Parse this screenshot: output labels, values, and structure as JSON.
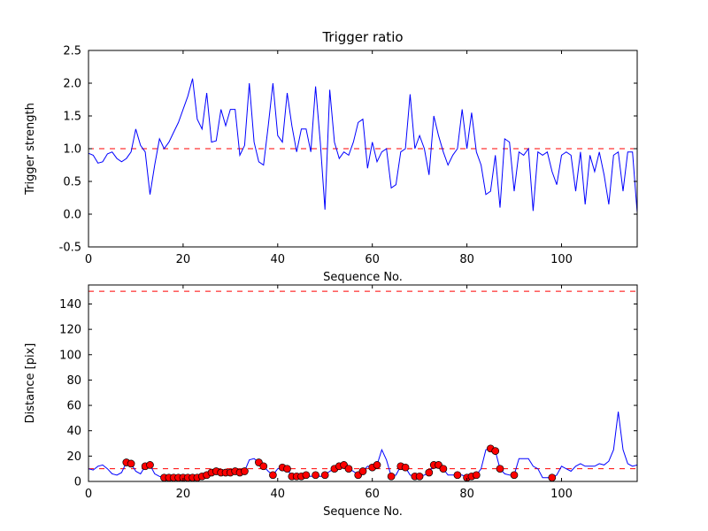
{
  "figure": {
    "background": "#ffffff",
    "line_color": "#0000ff",
    "threshold_color": "#ff0000",
    "marker_face_color": "#ff0000",
    "marker_edge_color": "#000000"
  },
  "chart_data": [
    {
      "type": "line",
      "title": "Trigger ratio",
      "xlabel": "Sequence No.",
      "ylabel": "Trigger strength",
      "xlim": [
        0,
        116
      ],
      "ylim": [
        -0.5,
        2.5
      ],
      "xticks": [
        0,
        20,
        40,
        60,
        80,
        100
      ],
      "yticks": [
        -0.5,
        0.0,
        0.5,
        1.0,
        1.5,
        2.0,
        2.5
      ],
      "grid": false,
      "legend": "none",
      "reference_lines": [
        {
          "y": 1.0,
          "color": "#ff0000",
          "style": "dashed"
        }
      ],
      "series": [
        {
          "name": "trigger-strength",
          "color": "#0000ff",
          "x": [
            0,
            1,
            2,
            3,
            4,
            5,
            6,
            7,
            8,
            9,
            10,
            11,
            12,
            13,
            14,
            15,
            16,
            17,
            18,
            19,
            20,
            21,
            22,
            23,
            24,
            25,
            26,
            27,
            28,
            29,
            30,
            31,
            32,
            33,
            34,
            35,
            36,
            37,
            38,
            39,
            40,
            41,
            42,
            43,
            44,
            45,
            46,
            47,
            48,
            49,
            50,
            51,
            52,
            53,
            54,
            55,
            56,
            57,
            58,
            59,
            60,
            61,
            62,
            63,
            64,
            65,
            66,
            67,
            68,
            69,
            70,
            71,
            72,
            73,
            74,
            75,
            76,
            77,
            78,
            79,
            80,
            81,
            82,
            83,
            84,
            85,
            86,
            87,
            88,
            89,
            90,
            91,
            92,
            93,
            94,
            95,
            96,
            97,
            98,
            99,
            100,
            101,
            102,
            103,
            104,
            105,
            106,
            107,
            108,
            109,
            110,
            111,
            112,
            113,
            114,
            115,
            116
          ],
          "y": [
            0.93,
            0.9,
            0.78,
            0.8,
            0.92,
            0.95,
            0.85,
            0.8,
            0.85,
            0.95,
            1.3,
            1.05,
            0.95,
            0.3,
            0.75,
            1.15,
            1.0,
            1.1,
            1.25,
            1.4,
            1.6,
            1.8,
            2.07,
            1.45,
            1.3,
            1.85,
            1.1,
            1.12,
            1.6,
            1.35,
            1.6,
            1.6,
            0.9,
            1.05,
            2.0,
            1.1,
            0.8,
            0.75,
            1.35,
            2.0,
            1.2,
            1.1,
            1.85,
            1.35,
            0.95,
            1.3,
            1.3,
            0.95,
            1.95,
            1.1,
            0.07,
            1.9,
            1.1,
            0.85,
            0.95,
            0.9,
            1.1,
            1.4,
            1.45,
            0.7,
            1.1,
            0.8,
            0.95,
            1.0,
            0.4,
            0.45,
            0.95,
            1.0,
            1.83,
            1.0,
            1.2,
            1.0,
            0.6,
            1.5,
            1.2,
            0.95,
            0.75,
            0.9,
            1.0,
            1.6,
            1.0,
            1.55,
            0.95,
            0.75,
            0.3,
            0.35,
            0.9,
            0.1,
            1.15,
            1.1,
            0.35,
            0.95,
            0.9,
            1.0,
            0.05,
            0.95,
            0.9,
            0.95,
            0.65,
            0.45,
            0.9,
            0.95,
            0.9,
            0.35,
            0.95,
            0.15,
            0.9,
            0.65,
            0.95,
            0.6,
            0.15,
            0.9,
            0.95,
            0.35,
            0.95,
            0.95,
            0.02
          ]
        }
      ]
    },
    {
      "type": "line",
      "title": "",
      "xlabel": "Sequence No.",
      "ylabel": "Distance [pix]",
      "xlim": [
        0,
        116
      ],
      "ylim": [
        0,
        155
      ],
      "xticks": [
        0,
        20,
        40,
        60,
        80,
        100
      ],
      "yticks": [
        0,
        20,
        40,
        60,
        80,
        100,
        120,
        140
      ],
      "grid": false,
      "legend": "none",
      "reference_lines": [
        {
          "y": 150,
          "color": "#ff0000",
          "style": "dashed"
        },
        {
          "y": 10,
          "color": "#ff0000",
          "style": "dashed"
        }
      ],
      "series": [
        {
          "name": "distance",
          "color": "#0000ff",
          "x": [
            0,
            1,
            2,
            3,
            4,
            5,
            6,
            7,
            8,
            9,
            10,
            11,
            12,
            13,
            14,
            15,
            16,
            17,
            18,
            19,
            20,
            21,
            22,
            23,
            24,
            25,
            26,
            27,
            28,
            29,
            30,
            31,
            32,
            33,
            34,
            35,
            36,
            37,
            38,
            39,
            40,
            41,
            42,
            43,
            44,
            45,
            46,
            47,
            48,
            49,
            50,
            51,
            52,
            53,
            54,
            55,
            56,
            57,
            58,
            59,
            60,
            61,
            62,
            63,
            64,
            65,
            66,
            67,
            68,
            69,
            70,
            71,
            72,
            73,
            74,
            75,
            76,
            77,
            78,
            79,
            80,
            81,
            82,
            83,
            84,
            85,
            86,
            87,
            88,
            89,
            90,
            91,
            92,
            93,
            94,
            95,
            96,
            97,
            98,
            99,
            100,
            101,
            102,
            103,
            104,
            105,
            106,
            107,
            108,
            109,
            110,
            111,
            112,
            113,
            114,
            115,
            116
          ],
          "y": [
            10,
            9,
            12,
            13,
            10,
            6,
            5,
            7,
            15,
            14,
            8,
            6,
            12,
            13,
            6,
            4,
            3,
            3,
            3,
            3,
            3,
            3,
            3,
            3,
            4,
            5,
            7,
            8,
            7,
            7,
            7,
            8,
            7,
            8,
            17,
            18,
            15,
            12,
            8,
            5,
            10,
            11,
            10,
            4,
            4,
            4,
            5,
            4,
            5,
            4,
            5,
            8,
            10,
            12,
            13,
            10,
            8,
            5,
            8,
            12,
            11,
            13,
            25,
            17,
            4,
            5,
            12,
            11,
            5,
            4,
            4,
            5,
            7,
            13,
            13,
            10,
            5,
            5,
            5,
            5,
            3,
            4,
            5,
            10,
            25,
            26,
            24,
            10,
            6,
            5,
            5,
            18,
            18,
            18,
            12,
            10,
            3,
            3,
            3,
            5,
            12,
            10,
            8,
            12,
            14,
            12,
            12,
            12,
            14,
            13,
            16,
            25,
            55,
            25,
            14,
            12,
            13
          ]
        }
      ],
      "markers": {
        "name": "detection-markers",
        "shape": "circle",
        "color": "#ff0000",
        "edge": "#000000",
        "x": [
          8,
          9,
          12,
          13,
          16,
          17,
          18,
          19,
          20,
          21,
          22,
          23,
          24,
          25,
          26,
          27,
          28,
          29,
          30,
          31,
          32,
          33,
          36,
          37,
          39,
          41,
          42,
          43,
          44,
          45,
          46,
          48,
          50,
          52,
          53,
          54,
          55,
          57,
          58,
          60,
          61,
          64,
          66,
          67,
          69,
          70,
          72,
          73,
          74,
          75,
          78,
          80,
          81,
          82,
          85,
          86,
          87,
          90,
          98
        ],
        "y": [
          15,
          14,
          12,
          13,
          3,
          3,
          3,
          3,
          3,
          3,
          3,
          3,
          4,
          5,
          7,
          8,
          7,
          7,
          7,
          8,
          7,
          8,
          15,
          12,
          5,
          11,
          10,
          4,
          4,
          4,
          5,
          5,
          5,
          10,
          12,
          13,
          10,
          5,
          8,
          11,
          13,
          4,
          12,
          11,
          4,
          4,
          7,
          13,
          13,
          10,
          5,
          3,
          4,
          5,
          26,
          24,
          10,
          5,
          3
        ]
      }
    }
  ]
}
